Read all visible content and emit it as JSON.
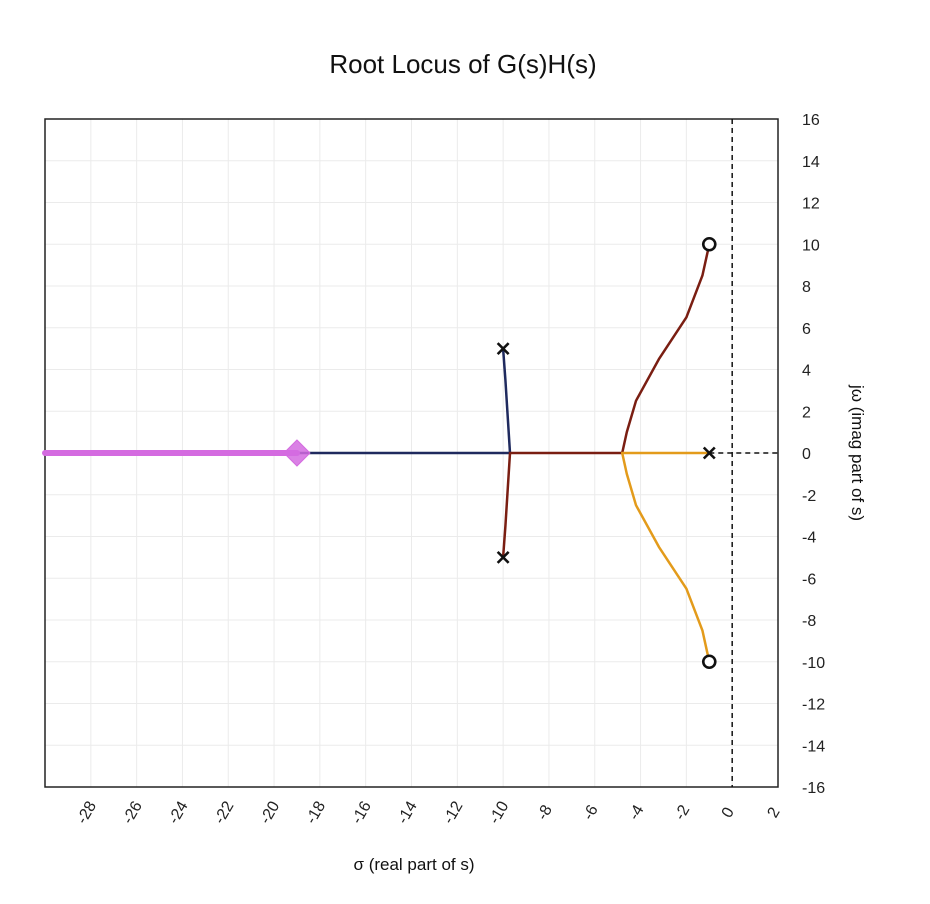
{
  "chart_data": {
    "type": "line",
    "title": "Root Locus of G(s)H(s)",
    "xlabel": "σ (real part of s)",
    "ylabel": "jω (imag part of s)",
    "xlim": [
      -30,
      2
    ],
    "ylim": [
      -16,
      16
    ],
    "x_ticks": [
      "-28",
      "-26",
      "-24",
      "-22",
      "-20",
      "-18",
      "-16",
      "-14",
      "-12",
      "-10",
      "-8",
      "-6",
      "-4",
      "-2",
      "0",
      "2"
    ],
    "y_ticks": [
      "16",
      "14",
      "12",
      "10",
      "8",
      "6",
      "4",
      "2",
      "0",
      "-2",
      "-4",
      "-6",
      "-8",
      "-10",
      "-12",
      "-14",
      "-16"
    ],
    "grid": true,
    "imag_axis_dashed": true,
    "poles": [
      [
        -10,
        5
      ],
      [
        -10,
        -5
      ],
      [
        -1,
        0
      ]
    ],
    "zeros": [
      [
        -1,
        10
      ],
      [
        -1,
        -10
      ]
    ],
    "marker": {
      "x": -19,
      "y": 0,
      "color": "#d46be0"
    },
    "series": [
      {
        "color": "#1f2a5e",
        "points": [
          [
            -10,
            5
          ],
          [
            -9.9,
            3.5
          ],
          [
            -9.7,
            0
          ],
          [
            -12,
            0
          ],
          [
            -16,
            0
          ],
          [
            -20,
            0
          ],
          [
            -24,
            0
          ],
          [
            -28,
            0
          ],
          [
            -30,
            0
          ]
        ]
      },
      {
        "color": "#7a1e12",
        "points": [
          [
            -10,
            -5
          ],
          [
            -9.9,
            -3.5
          ],
          [
            -9.7,
            0
          ],
          [
            -8,
            0
          ],
          [
            -6,
            0
          ],
          [
            -4.8,
            0
          ],
          [
            -4.6,
            1
          ],
          [
            -4.2,
            2.5
          ],
          [
            -3.2,
            4.5
          ],
          [
            -2,
            6.5
          ],
          [
            -1.3,
            8.5
          ],
          [
            -1,
            10
          ]
        ]
      },
      {
        "color": "#e39b1b",
        "points": [
          [
            -1,
            0
          ],
          [
            -2.5,
            0
          ],
          [
            -4.8,
            0
          ],
          [
            -4.6,
            -1
          ],
          [
            -4.2,
            -2.5
          ],
          [
            -3.2,
            -4.5
          ],
          [
            -2,
            -6.5
          ],
          [
            -1.3,
            -8.5
          ],
          [
            -1,
            -10
          ]
        ]
      },
      {
        "color": "#d46be0",
        "points": [
          [
            -19,
            0
          ],
          [
            -22,
            0
          ],
          [
            -26,
            0
          ],
          [
            -30,
            0
          ]
        ]
      }
    ]
  }
}
